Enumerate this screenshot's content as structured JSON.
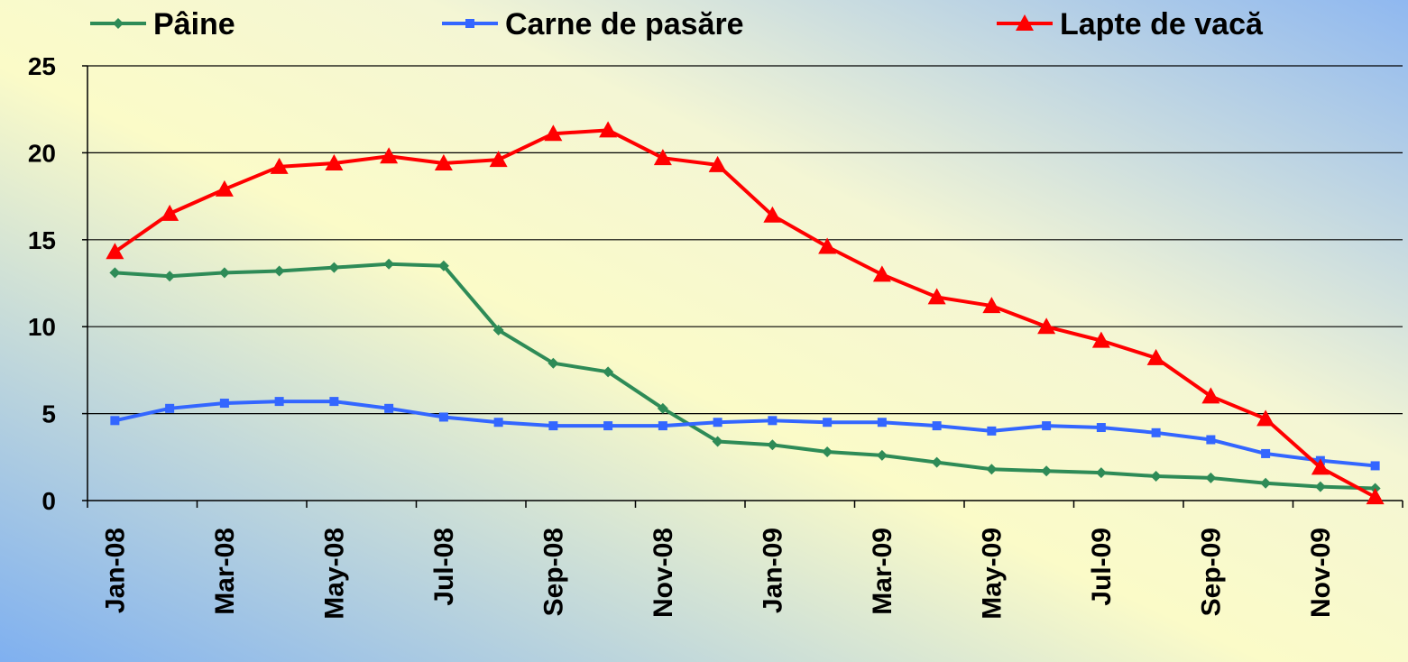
{
  "chart_data": {
    "type": "line",
    "categories": [
      "Jan-08",
      null,
      "Mar-08",
      null,
      "May-08",
      null,
      "Jul-08",
      null,
      "Sep-08",
      null,
      "Nov-08",
      null,
      "Jan-09",
      null,
      "Mar-09",
      null,
      "May-09",
      null,
      "Jul-09",
      null,
      "Sep-09",
      null,
      "Nov-09",
      null
    ],
    "series": [
      {
        "name": "Pâine",
        "color": "#2e8b57",
        "marker": "diamond",
        "values": [
          13.1,
          12.9,
          13.1,
          13.2,
          13.4,
          13.6,
          13.5,
          9.8,
          7.9,
          7.4,
          5.3,
          3.4,
          3.2,
          2.8,
          2.6,
          2.2,
          1.8,
          1.7,
          1.6,
          1.4,
          1.3,
          1.0,
          0.8,
          0.7
        ]
      },
      {
        "name": "Carne de pasăre",
        "color": "#3366ff",
        "marker": "square",
        "values": [
          4.6,
          5.3,
          5.6,
          5.7,
          5.7,
          5.3,
          4.8,
          4.5,
          4.3,
          4.3,
          4.3,
          4.5,
          4.6,
          4.5,
          4.5,
          4.3,
          4.0,
          4.3,
          4.2,
          3.9,
          3.5,
          2.7,
          2.3,
          2.0
        ]
      },
      {
        "name": "Lapte de vacă",
        "color": "#ff0000",
        "marker": "triangle",
        "values": [
          14.3,
          16.5,
          17.9,
          19.2,
          19.4,
          19.8,
          19.4,
          19.6,
          21.1,
          21.3,
          19.7,
          19.3,
          16.4,
          14.6,
          13.0,
          11.7,
          11.2,
          10.0,
          9.2,
          8.2,
          6.0,
          4.7,
          1.9,
          0.2
        ]
      }
    ],
    "ylim": [
      0,
      25
    ],
    "yticks": [
      0,
      5,
      10,
      15,
      20,
      25
    ],
    "grid": true,
    "legend": "top"
  }
}
